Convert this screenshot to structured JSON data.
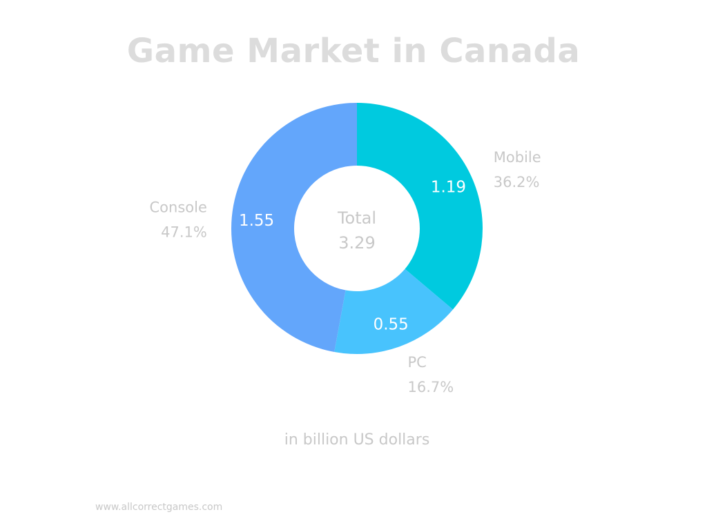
{
  "page": {
    "caption": "in billion US dollars",
    "source": "www.allcorrectgames.com"
  },
  "chart_data": {
    "type": "pie",
    "variant": "donut",
    "title": "Game Market in Canada",
    "center_label": "Total",
    "center_value": "3.29",
    "slices": [
      {
        "name": "Mobile",
        "value": 1.19,
        "value_label": "1.19",
        "percent_label": "36.2%",
        "color": "#00cadf"
      },
      {
        "name": "PC",
        "value": 0.55,
        "value_label": "0.55",
        "percent_label": "16.7%",
        "color": "#48c3fd"
      },
      {
        "name": "Console",
        "value": 1.55,
        "value_label": "1.55",
        "percent_label": "47.1%",
        "color": "#63a6fb"
      }
    ],
    "label_color": "#c8c8c8",
    "value_label_color": "#ffffff"
  }
}
